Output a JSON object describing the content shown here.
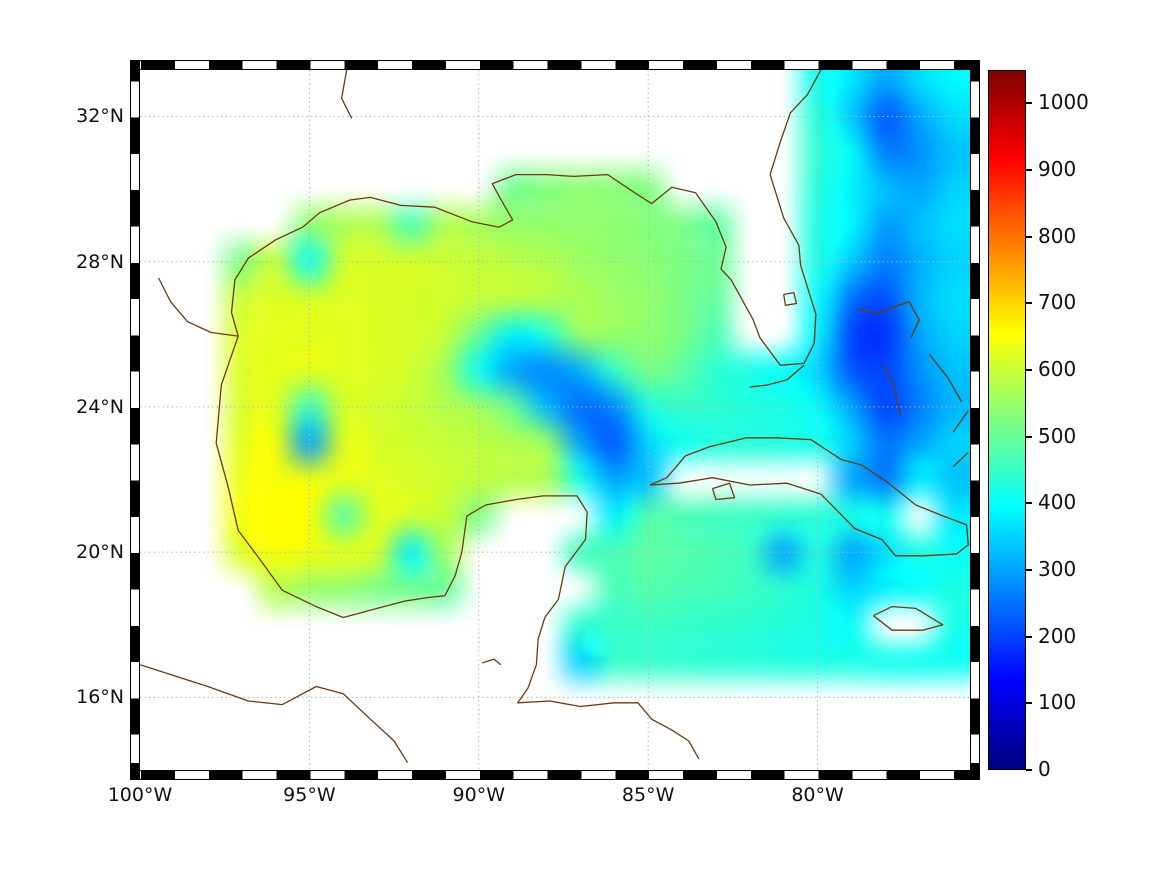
{
  "figure": {
    "background": "#ffffff"
  },
  "axes": {
    "x_ticks": [
      {
        "label": "100°W",
        "lon": -100
      },
      {
        "label": "95°W",
        "lon": -95
      },
      {
        "label": "90°W",
        "lon": -90
      },
      {
        "label": "85°W",
        "lon": -85
      },
      {
        "label": "80°W",
        "lon": -80
      }
    ],
    "y_ticks": [
      {
        "label": "32°N",
        "lat": 32
      },
      {
        "label": "28°N",
        "lat": 28
      },
      {
        "label": "24°N",
        "lat": 24
      },
      {
        "label": "20°N",
        "lat": 20
      },
      {
        "label": "16°N",
        "lat": 16
      }
    ],
    "grid_color": "#b5b5b5"
  },
  "colorbar": {
    "tick_labels": [
      "0",
      "100",
      "200",
      "300",
      "400",
      "500",
      "600",
      "700",
      "800",
      "900",
      "1000"
    ],
    "tick_values": [
      0,
      100,
      200,
      300,
      400,
      500,
      600,
      700,
      800,
      900,
      1000
    ],
    "vmin": 0,
    "vmax": 1050,
    "colormap": "jet"
  },
  "coast": {
    "color": "#6b3a10",
    "stroke_width": 1.3,
    "paths": [
      {
        "name": "north-america",
        "points": [
          [
            -79.9,
            33.28
          ],
          [
            -80.3,
            32.6
          ],
          [
            -80.8,
            32.1
          ],
          [
            -81.1,
            31.3
          ],
          [
            -81.4,
            30.4
          ],
          [
            -81.0,
            29.2
          ],
          [
            -80.55,
            28.45
          ],
          [
            -80.5,
            27.9
          ],
          [
            -80.05,
            26.55
          ],
          [
            -80.1,
            25.75
          ],
          [
            -80.4,
            25.2
          ],
          [
            -81.1,
            25.15
          ],
          [
            -81.7,
            25.9
          ],
          [
            -81.9,
            26.4
          ],
          [
            -82.55,
            27.5
          ],
          [
            -82.85,
            27.8
          ],
          [
            -82.7,
            28.4
          ],
          [
            -83.0,
            29.1
          ],
          [
            -83.6,
            29.9
          ],
          [
            -84.3,
            30.05
          ],
          [
            -84.9,
            29.6
          ],
          [
            -85.4,
            29.9
          ],
          [
            -86.2,
            30.4
          ],
          [
            -87.2,
            30.35
          ],
          [
            -88.0,
            30.4
          ],
          [
            -88.9,
            30.4
          ],
          [
            -89.6,
            30.15
          ],
          [
            -89.4,
            29.8
          ],
          [
            -89.0,
            29.15
          ],
          [
            -89.4,
            28.95
          ],
          [
            -90.2,
            29.1
          ],
          [
            -91.3,
            29.5
          ],
          [
            -92.3,
            29.55
          ],
          [
            -93.2,
            29.77
          ],
          [
            -93.8,
            29.7
          ],
          [
            -94.7,
            29.35
          ],
          [
            -95.2,
            28.95
          ],
          [
            -96.0,
            28.6
          ],
          [
            -96.8,
            28.1
          ],
          [
            -97.2,
            27.5
          ],
          [
            -97.3,
            26.6
          ],
          [
            -97.1,
            25.95
          ],
          [
            -97.6,
            24.6
          ],
          [
            -97.75,
            23.0
          ],
          [
            -97.4,
            21.8
          ],
          [
            -97.1,
            20.6
          ],
          [
            -96.5,
            19.85
          ],
          [
            -95.8,
            18.95
          ],
          [
            -94.8,
            18.5
          ],
          [
            -94.0,
            18.2
          ],
          [
            -93.0,
            18.45
          ],
          [
            -92.2,
            18.65
          ],
          [
            -91.5,
            18.75
          ],
          [
            -91.0,
            18.8
          ],
          [
            -90.7,
            19.35
          ],
          [
            -90.5,
            20.0
          ],
          [
            -90.35,
            21.0
          ],
          [
            -89.8,
            21.3
          ],
          [
            -88.9,
            21.45
          ],
          [
            -88.1,
            21.55
          ],
          [
            -87.1,
            21.55
          ],
          [
            -86.8,
            21.1
          ],
          [
            -86.85,
            20.35
          ],
          [
            -87.45,
            19.6
          ],
          [
            -87.65,
            18.7
          ],
          [
            -88.05,
            18.2
          ],
          [
            -88.25,
            17.6
          ],
          [
            -88.3,
            16.9
          ],
          [
            -88.55,
            16.25
          ],
          [
            -88.85,
            15.85
          ],
          [
            -87.9,
            15.9
          ],
          [
            -87.0,
            15.75
          ],
          [
            -86.0,
            15.85
          ],
          [
            -85.3,
            15.85
          ],
          [
            -84.9,
            15.4
          ],
          [
            -84.3,
            15.1
          ],
          [
            -83.8,
            14.8
          ],
          [
            -83.5,
            14.3
          ]
        ]
      },
      {
        "name": "pacific-mexico",
        "points": [
          [
            -100,
            16.9
          ],
          [
            -99.0,
            16.6
          ],
          [
            -98.0,
            16.3
          ],
          [
            -96.8,
            15.9
          ],
          [
            -95.8,
            15.8
          ],
          [
            -94.8,
            16.3
          ],
          [
            -94.0,
            16.1
          ],
          [
            -93.2,
            15.4
          ],
          [
            -92.5,
            14.8
          ],
          [
            -92.1,
            14.2
          ]
        ]
      },
      {
        "name": "rio-grande",
        "points": [
          [
            -97.1,
            25.95
          ],
          [
            -97.9,
            26.05
          ],
          [
            -98.6,
            26.35
          ],
          [
            -99.1,
            26.9
          ],
          [
            -99.45,
            27.55
          ]
        ]
      },
      {
        "name": "red-river",
        "points": [
          [
            -93.9,
            33.28
          ],
          [
            -94.05,
            32.5
          ],
          [
            -93.75,
            31.95
          ]
        ]
      },
      {
        "name": "cuba",
        "points": [
          [
            -84.95,
            21.85
          ],
          [
            -84.45,
            22.05
          ],
          [
            -83.9,
            22.65
          ],
          [
            -83.2,
            22.9
          ],
          [
            -82.1,
            23.15
          ],
          [
            -81.2,
            23.15
          ],
          [
            -80.2,
            23.1
          ],
          [
            -79.3,
            22.55
          ],
          [
            -78.7,
            22.4
          ],
          [
            -77.9,
            21.9
          ],
          [
            -77.1,
            21.3
          ],
          [
            -76.3,
            21.0
          ],
          [
            -75.6,
            20.75
          ],
          [
            -75.55,
            20.2
          ],
          [
            -75.9,
            19.95
          ],
          [
            -76.9,
            19.9
          ],
          [
            -77.7,
            19.9
          ],
          [
            -78.1,
            20.35
          ],
          [
            -78.9,
            20.65
          ],
          [
            -79.9,
            21.6
          ],
          [
            -80.9,
            21.9
          ],
          [
            -82.0,
            21.85
          ],
          [
            -83.1,
            22.05
          ],
          [
            -84.1,
            21.9
          ],
          [
            -84.95,
            21.85
          ]
        ]
      },
      {
        "name": "isla-juventud",
        "points": [
          [
            -83.1,
            21.75
          ],
          [
            -82.6,
            21.9
          ],
          [
            -82.45,
            21.5
          ],
          [
            -83.0,
            21.45
          ],
          [
            -83.1,
            21.75
          ]
        ]
      },
      {
        "name": "jamaica",
        "points": [
          [
            -78.35,
            18.25
          ],
          [
            -77.8,
            18.5
          ],
          [
            -77.1,
            18.45
          ],
          [
            -76.3,
            18.0
          ],
          [
            -76.9,
            17.85
          ],
          [
            -77.8,
            17.85
          ],
          [
            -78.35,
            18.25
          ]
        ]
      },
      {
        "name": "grand-bahama-abaco",
        "points": [
          [
            -78.8,
            26.7
          ],
          [
            -78.2,
            26.55
          ],
          [
            -77.9,
            26.7
          ],
          [
            -77.3,
            26.9
          ],
          [
            -77.0,
            26.4
          ],
          [
            -77.25,
            25.9
          ]
        ]
      },
      {
        "name": "andros",
        "points": [
          [
            -78.05,
            25.15
          ],
          [
            -77.75,
            24.6
          ],
          [
            -77.55,
            23.75
          ]
        ]
      },
      {
        "name": "eleuthera",
        "points": [
          [
            -76.7,
            25.45
          ],
          [
            -76.15,
            24.8
          ],
          [
            -75.75,
            24.15
          ]
        ]
      },
      {
        "name": "long-island",
        "points": [
          [
            -75.55,
            23.9
          ],
          [
            -76.0,
            23.3
          ]
        ]
      },
      {
        "name": "crooked-island",
        "points": [
          [
            -75.55,
            22.75
          ],
          [
            -76.0,
            22.35
          ]
        ]
      },
      {
        "name": "florida-keys",
        "points": [
          [
            -80.4,
            25.15
          ],
          [
            -80.9,
            24.75
          ],
          [
            -81.5,
            24.6
          ],
          [
            -82.0,
            24.55
          ]
        ]
      },
      {
        "name": "lake-okeechobee",
        "points": [
          [
            -81.0,
            27.1
          ],
          [
            -80.7,
            27.15
          ],
          [
            -80.62,
            26.85
          ],
          [
            -80.95,
            26.8
          ],
          [
            -81.0,
            27.1
          ]
        ]
      },
      {
        "name": "lake-peten",
        "points": [
          [
            -89.9,
            16.95
          ],
          [
            -89.55,
            17.05
          ],
          [
            -89.35,
            16.9
          ]
        ]
      }
    ]
  },
  "chart_data": {
    "type": "heatmap",
    "title": "",
    "xlabel": "",
    "ylabel": "",
    "colormap": "jet",
    "vmin": 0,
    "vmax": 1050,
    "lon_range": [
      -100,
      -75.5
    ],
    "lat_range": [
      14.0,
      33.28
    ],
    "x_tick_labels": [
      "100°W",
      "95°W",
      "90°W",
      "85°W",
      "80°W"
    ],
    "y_tick_labels": [
      "32°N",
      "28°N",
      "24°N",
      "20°N",
      "16°N"
    ],
    "colorbar_ticks": [
      0,
      100,
      200,
      300,
      400,
      500,
      600,
      700,
      800,
      900,
      1000
    ],
    "grid_on": true,
    "lon_start": -100,
    "lon_step": 1,
    "lat_start": 33,
    "lat_step": -1,
    "ncols": 25,
    "nrows": 19,
    "values": [
      [
        null,
        null,
        null,
        null,
        null,
        null,
        null,
        null,
        null,
        null,
        null,
        null,
        null,
        null,
        null,
        null,
        null,
        null,
        null,
        null,
        410,
        370,
        300,
        360,
        390
      ],
      [
        null,
        null,
        null,
        null,
        null,
        null,
        null,
        null,
        null,
        null,
        null,
        null,
        null,
        null,
        null,
        null,
        null,
        null,
        null,
        null,
        430,
        340,
        220,
        300,
        360
      ],
      [
        null,
        null,
        null,
        null,
        null,
        null,
        null,
        null,
        null,
        null,
        null,
        null,
        null,
        null,
        null,
        null,
        null,
        null,
        null,
        null,
        440,
        400,
        260,
        280,
        330
      ],
      [
        null,
        null,
        null,
        null,
        null,
        null,
        null,
        null,
        null,
        null,
        null,
        510,
        530,
        540,
        535,
        525,
        null,
        null,
        null,
        null,
        430,
        380,
        330,
        300,
        350
      ],
      [
        null,
        null,
        null,
        null,
        null,
        540,
        570,
        575,
        470,
        575,
        565,
        550,
        545,
        545,
        540,
        530,
        520,
        490,
        null,
        null,
        420,
        390,
        290,
        330,
        360
      ],
      [
        null,
        null,
        null,
        520,
        600,
        400,
        610,
        615,
        615,
        605,
        595,
        585,
        575,
        555,
        545,
        535,
        520,
        505,
        null,
        null,
        420,
        340,
        260,
        310,
        350
      ],
      [
        null,
        null,
        null,
        600,
        620,
        615,
        620,
        620,
        615,
        610,
        600,
        595,
        585,
        570,
        555,
        545,
        520,
        495,
        null,
        null,
        400,
        250,
        210,
        320,
        360
      ],
      [
        null,
        null,
        null,
        615,
        630,
        625,
        625,
        620,
        615,
        600,
        500,
        380,
        430,
        555,
        550,
        540,
        520,
        470,
        null,
        null,
        380,
        200,
        180,
        300,
        350
      ],
      [
        null,
        null,
        null,
        620,
        630,
        630,
        625,
        620,
        610,
        560,
        400,
        300,
        270,
        310,
        450,
        520,
        490,
        440,
        420,
        400,
        350,
        220,
        200,
        280,
        330
      ],
      [
        null,
        null,
        null,
        615,
        625,
        450,
        615,
        610,
        600,
        580,
        560,
        500,
        320,
        240,
        270,
        420,
        450,
        440,
        430,
        420,
        400,
        300,
        200,
        260,
        320
      ],
      [
        null,
        null,
        null,
        625,
        645,
        300,
        625,
        618,
        608,
        598,
        588,
        578,
        560,
        300,
        220,
        350,
        410,
        430,
        430,
        425,
        415,
        350,
        250,
        300,
        350
      ],
      [
        null,
        null,
        null,
        640,
        650,
        645,
        635,
        625,
        615,
        605,
        592,
        582,
        572,
        420,
        300,
        330,
        null,
        null,
        null,
        null,
        null,
        300,
        250,
        380,
        330
      ],
      [
        null,
        null,
        null,
        645,
        660,
        650,
        480,
        625,
        612,
        598,
        520,
        null,
        null,
        null,
        380,
        480,
        470,
        460,
        455,
        445,
        435,
        420,
        410,
        null,
        370
      ],
      [
        null,
        null,
        null,
        620,
        650,
        640,
        630,
        615,
        380,
        560,
        null,
        null,
        null,
        455,
        470,
        490,
        480,
        470,
        455,
        300,
        430,
        300,
        360,
        420,
        400
      ],
      [
        null,
        null,
        null,
        null,
        580,
        550,
        540,
        520,
        510,
        500,
        null,
        null,
        null,
        null,
        465,
        480,
        470,
        465,
        455,
        440,
        420,
        350,
        380,
        400,
        420
      ],
      [
        null,
        null,
        null,
        null,
        null,
        null,
        null,
        null,
        null,
        null,
        null,
        null,
        null,
        440,
        450,
        455,
        450,
        445,
        440,
        430,
        420,
        400,
        null,
        null,
        420
      ],
      [
        null,
        null,
        null,
        null,
        null,
        null,
        null,
        null,
        null,
        null,
        null,
        null,
        null,
        350,
        450,
        448,
        443,
        438,
        433,
        428,
        423,
        418,
        412,
        408,
        405
      ],
      [
        null,
        null,
        null,
        null,
        null,
        null,
        null,
        null,
        null,
        null,
        null,
        null,
        null,
        null,
        null,
        null,
        null,
        null,
        null,
        null,
        null,
        null,
        null,
        null,
        null
      ],
      [
        null,
        null,
        null,
        null,
        null,
        null,
        null,
        null,
        null,
        null,
        null,
        null,
        null,
        null,
        null,
        null,
        null,
        null,
        null,
        null,
        null,
        null,
        null,
        null,
        null
      ]
    ]
  }
}
